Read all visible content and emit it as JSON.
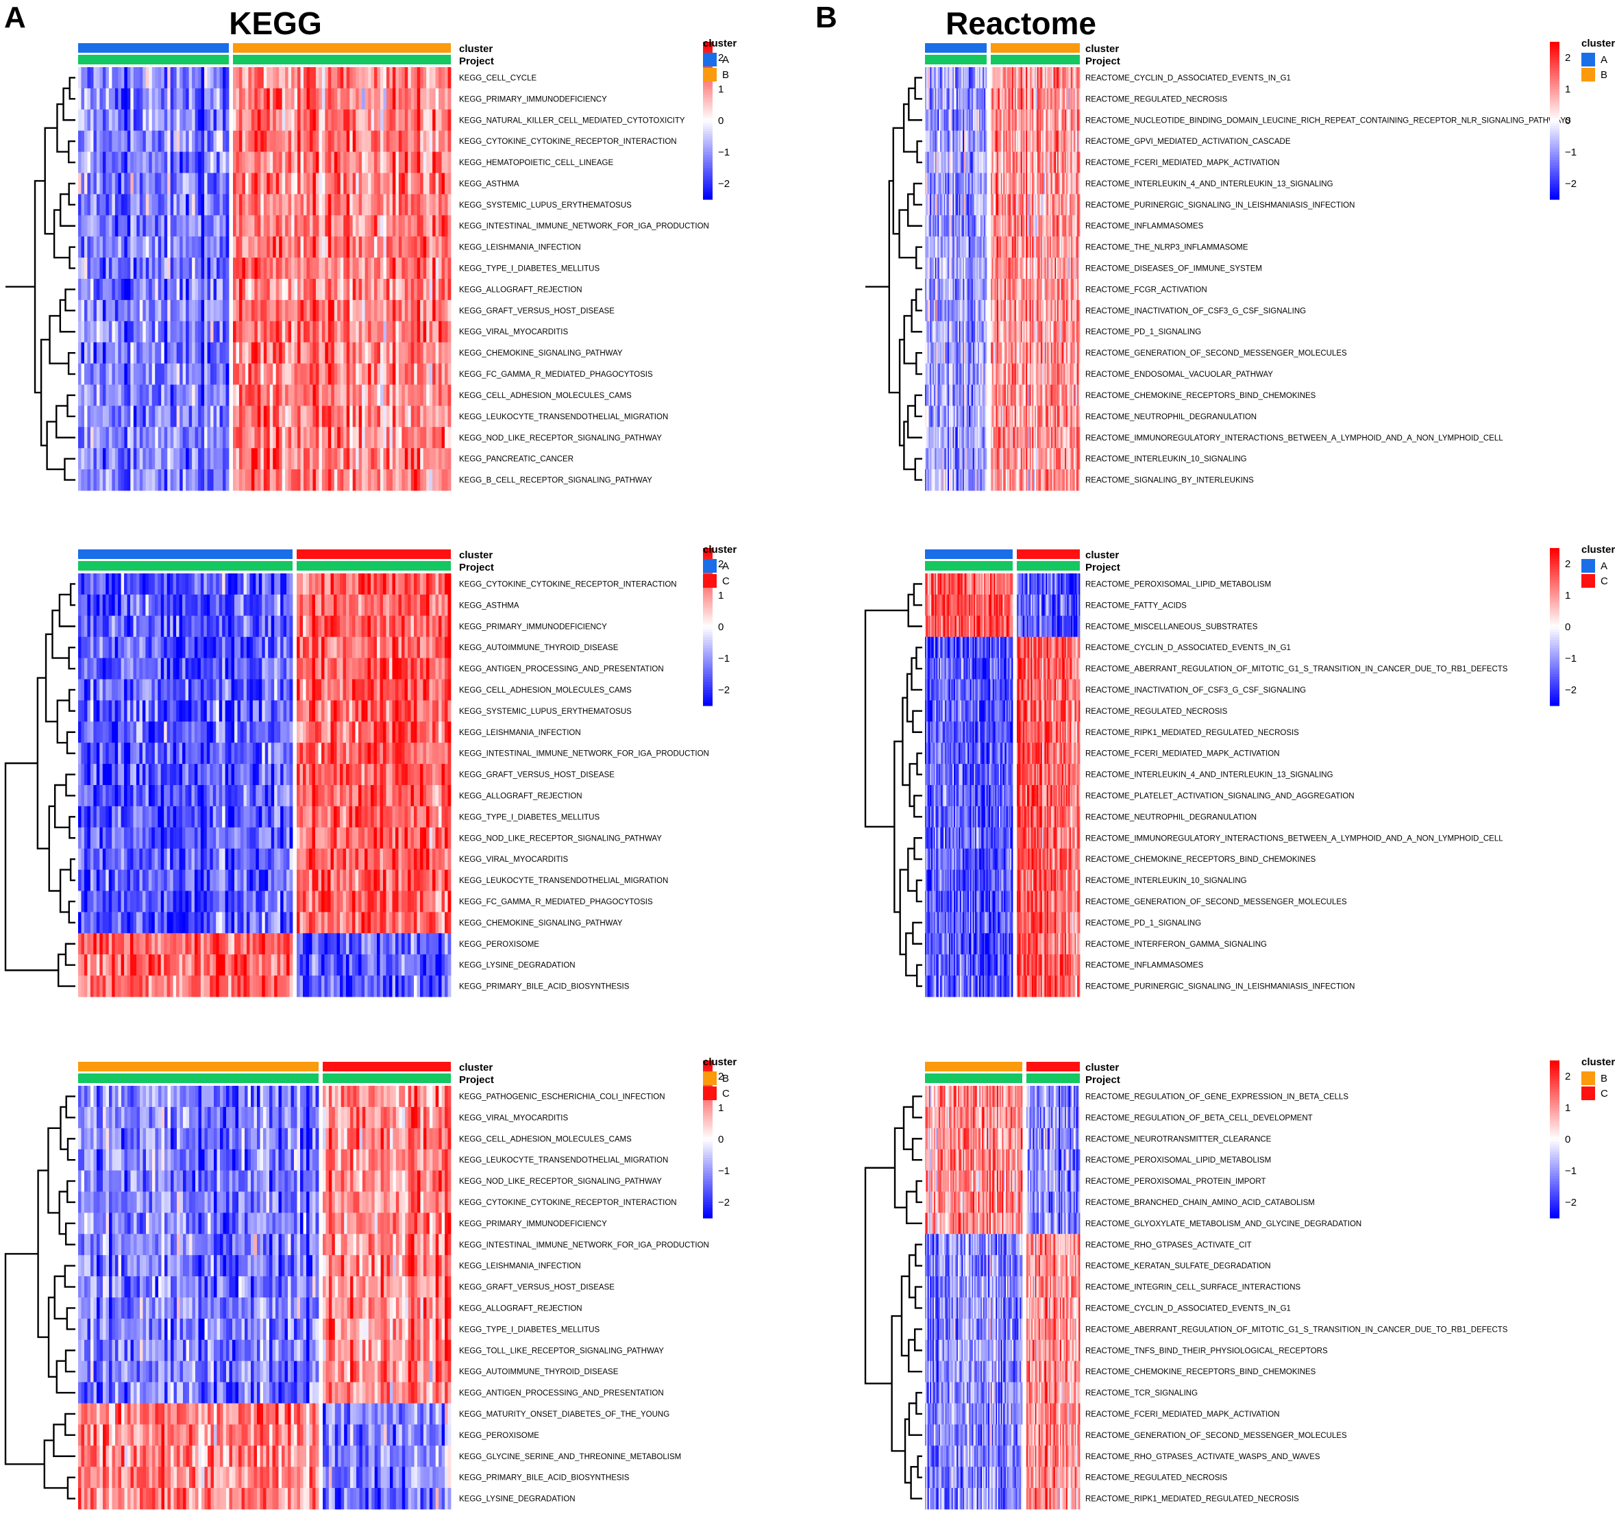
{
  "figure": {
    "panel_letters": [
      "A",
      "B"
    ],
    "column_titles": [
      "KEGG",
      "Reactome"
    ]
  },
  "colors": {
    "cluster_A": "#1a6ee8",
    "cluster_B": "#fb9a0c",
    "cluster_C": "#ff1111",
    "project": "#14c760",
    "scale_low": "#0000ff",
    "scale_mid": "#ffffff",
    "scale_high": "#ff0000"
  },
  "chart_data": [
    {
      "type": "heatmap",
      "panel": "A",
      "comparison": [
        "A",
        "B"
      ],
      "group_split": 0.41,
      "ylabels": [
        "KEGG_CELL_CYCLE",
        "KEGG_PRIMARY_IMMUNODEFICIENCY",
        "KEGG_NATURAL_KILLER_CELL_MEDIATED_CYTOTOXICITY",
        "KEGG_CYTOKINE_CYTOKINE_RECEPTOR_INTERACTION",
        "KEGG_HEMATOPOIETIC_CELL_LINEAGE",
        "KEGG_ASTHMA",
        "KEGG_SYSTEMIC_LUPUS_ERYTHEMATOSUS",
        "KEGG_INTESTINAL_IMMUNE_NETWORK_FOR_IGA_PRODUCTION",
        "KEGG_LEISHMANIA_INFECTION",
        "KEGG_TYPE_I_DIABETES_MELLITUS",
        "KEGG_ALLOGRAFT_REJECTION",
        "KEGG_GRAFT_VERSUS_HOST_DISEASE",
        "KEGG_VIRAL_MYOCARDITIS",
        "KEGG_CHEMOKINE_SIGNALING_PATHWAY",
        "KEGG_FC_GAMMA_R_MEDIATED_PHAGOCYTOSIS",
        "KEGG_CELL_ADHESION_MOLECULES_CAMS",
        "KEGG_LEUKOCYTE_TRANSENDOTHELIAL_MIGRATION",
        "KEGG_NOD_LIKE_RECEPTOR_SIGNALING_PATHWAY",
        "KEGG_PANCREATIC_CANCER",
        "KEGG_B_CELL_RECEPTOR_SIGNALING_PATHWAY"
      ],
      "row_pattern": [
        -1,
        -1,
        -1,
        -1,
        -1,
        -1,
        -1,
        -1,
        -1,
        -1,
        -1,
        -1,
        -1,
        -1,
        -1,
        -1,
        -1,
        -1,
        -1,
        -1
      ],
      "intensity": 0.55,
      "annotation_labels": [
        "cluster",
        "Project"
      ],
      "legend_title": "cluster",
      "legend_entries": [
        "A",
        "B"
      ],
      "colorbar_ticks": [
        "2",
        "1",
        "0",
        "−1",
        "−2"
      ],
      "colorbar_range": [
        -2.5,
        2.5
      ]
    },
    {
      "type": "heatmap",
      "panel": "B",
      "comparison": [
        "A",
        "B"
      ],
      "group_split": 0.41,
      "ylabels": [
        "REACTOME_CYCLIN_D_ASSOCIATED_EVENTS_IN_G1",
        "REACTOME_REGULATED_NECROSIS",
        "REACTOME_NUCLEOTIDE_BINDING_DOMAIN_LEUCINE_RICH_REPEAT_CONTAINING_RECEPTOR_NLR_SIGNALING_PATHWAYS",
        "REACTOME_GPVI_MEDIATED_ACTIVATION_CASCADE",
        "REACTOME_FCERI_MEDIATED_MAPK_ACTIVATION",
        "REACTOME_INTERLEUKIN_4_AND_INTERLEUKIN_13_SIGNALING",
        "REACTOME_PURINERGIC_SIGNALING_IN_LEISHMANIASIS_INFECTION",
        "REACTOME_INFLAMMASOMES",
        "REACTOME_THE_NLRP3_INFLAMMASOME",
        "REACTOME_DISEASES_OF_IMMUNE_SYSTEM",
        "REACTOME_FCGR_ACTIVATION",
        "REACTOME_INACTIVATION_OF_CSF3_G_CSF_SIGNALING",
        "REACTOME_PD_1_SIGNALING",
        "REACTOME_GENERATION_OF_SECOND_MESSENGER_MOLECULES",
        "REACTOME_ENDOSOMAL_VACUOLAR_PATHWAY",
        "REACTOME_CHEMOKINE_RECEPTORS_BIND_CHEMOKINES",
        "REACTOME_NEUTROPHIL_DEGRANULATION",
        "REACTOME_IMMUNOREGULATORY_INTERACTIONS_BETWEEN_A_LYMPHOID_AND_A_NON_LYMPHOID_CELL",
        "REACTOME_INTERLEUKIN_10_SIGNALING",
        "REACTOME_SIGNALING_BY_INTERLEUKINS"
      ],
      "row_pattern": [
        -1,
        -1,
        -1,
        -1,
        -1,
        -1,
        -1,
        -1,
        -1,
        -1,
        -1,
        -1,
        -1,
        -1,
        -1,
        -1,
        -1,
        -1,
        -1,
        -1
      ],
      "intensity": 0.45,
      "annotation_labels": [
        "cluster",
        "Project"
      ],
      "legend_title": "cluster",
      "legend_entries": [
        "A",
        "B"
      ],
      "colorbar_ticks": [
        "2",
        "1",
        "0",
        "−1",
        "−2"
      ],
      "colorbar_range": [
        -2.5,
        2.5
      ]
    },
    {
      "type": "heatmap",
      "panel": "A",
      "comparison": [
        "A",
        "C"
      ],
      "group_split": 0.58,
      "ylabels": [
        "KEGG_CYTOKINE_CYTOKINE_RECEPTOR_INTERACTION",
        "KEGG_ASTHMA",
        "KEGG_PRIMARY_IMMUNODEFICIENCY",
        "KEGG_AUTOIMMUNE_THYROID_DISEASE",
        "KEGG_ANTIGEN_PROCESSING_AND_PRESENTATION",
        "KEGG_CELL_ADHESION_MOLECULES_CAMS",
        "KEGG_SYSTEMIC_LUPUS_ERYTHEMATOSUS",
        "KEGG_LEISHMANIA_INFECTION",
        "KEGG_INTESTINAL_IMMUNE_NETWORK_FOR_IGA_PRODUCTION",
        "KEGG_GRAFT_VERSUS_HOST_DISEASE",
        "KEGG_ALLOGRAFT_REJECTION",
        "KEGG_TYPE_I_DIABETES_MELLITUS",
        "KEGG_NOD_LIKE_RECEPTOR_SIGNALING_PATHWAY",
        "KEGG_VIRAL_MYOCARDITIS",
        "KEGG_LEUKOCYTE_TRANSENDOTHELIAL_MIGRATION",
        "KEGG_FC_GAMMA_R_MEDIATED_PHAGOCYTOSIS",
        "KEGG_CHEMOKINE_SIGNALING_PATHWAY",
        "KEGG_PEROXISOME",
        "KEGG_LYSINE_DEGRADATION",
        "KEGG_PRIMARY_BILE_ACID_BIOSYNTHESIS"
      ],
      "row_pattern": [
        -1,
        -1,
        -1,
        -1,
        -1,
        -1,
        -1,
        -1,
        -1,
        -1,
        -1,
        -1,
        -1,
        -1,
        -1,
        -1,
        -1,
        1,
        1,
        1
      ],
      "intensity": 0.72,
      "annotation_labels": [
        "cluster",
        "Project"
      ],
      "legend_title": "cluster",
      "legend_entries": [
        "A",
        "C"
      ],
      "colorbar_ticks": [
        "2",
        "1",
        "0",
        "−1",
        "−2"
      ],
      "colorbar_range": [
        -2.5,
        2.5
      ]
    },
    {
      "type": "heatmap",
      "panel": "B",
      "comparison": [
        "A",
        "C"
      ],
      "group_split": 0.58,
      "ylabels": [
        "REACTOME_PEROXISOMAL_LIPID_METABOLISM",
        "REACTOME_FATTY_ACIDS",
        "REACTOME_MISCELLANEOUS_SUBSTRATES",
        "REACTOME_CYCLIN_D_ASSOCIATED_EVENTS_IN_G1",
        "REACTOME_ABERRANT_REGULATION_OF_MITOTIC_G1_S_TRANSITION_IN_CANCER_DUE_TO_RB1_DEFECTS",
        "REACTOME_INACTIVATION_OF_CSF3_G_CSF_SIGNALING",
        "REACTOME_REGULATED_NECROSIS",
        "REACTOME_RIPK1_MEDIATED_REGULATED_NECROSIS",
        "REACTOME_FCERI_MEDIATED_MAPK_ACTIVATION",
        "REACTOME_INTERLEUKIN_4_AND_INTERLEUKIN_13_SIGNALING",
        "REACTOME_PLATELET_ACTIVATION_SIGNALING_AND_AGGREGATION",
        "REACTOME_NEUTROPHIL_DEGRANULATION",
        "REACTOME_IMMUNOREGULATORY_INTERACTIONS_BETWEEN_A_LYMPHOID_AND_A_NON_LYMPHOID_CELL",
        "REACTOME_CHEMOKINE_RECEPTORS_BIND_CHEMOKINES",
        "REACTOME_INTERLEUKIN_10_SIGNALING",
        "REACTOME_GENERATION_OF_SECOND_MESSENGER_MOLECULES",
        "REACTOME_PD_1_SIGNALING",
        "REACTOME_INTERFERON_GAMMA_SIGNALING",
        "REACTOME_INFLAMMASOMES",
        "REACTOME_PURINERGIC_SIGNALING_IN_LEISHMANIASIS_INFECTION"
      ],
      "row_pattern": [
        1,
        1,
        1,
        -1,
        -1,
        -1,
        -1,
        -1,
        -1,
        -1,
        -1,
        -1,
        -1,
        -1,
        -1,
        -1,
        -1,
        -1,
        -1,
        -1
      ],
      "intensity": 0.75,
      "annotation_labels": [
        "cluster",
        "Project"
      ],
      "legend_title": "cluster",
      "legend_entries": [
        "A",
        "C"
      ],
      "colorbar_ticks": [
        "2",
        "1",
        "0",
        "−1",
        "−2"
      ],
      "colorbar_range": [
        -2.5,
        2.5
      ]
    },
    {
      "type": "heatmap",
      "panel": "A",
      "comparison": [
        "B",
        "C"
      ],
      "group_split": 0.65,
      "ylabels": [
        "KEGG_PATHOGENIC_ESCHERICHIA_COLI_INFECTION",
        "KEGG_VIRAL_MYOCARDITIS",
        "KEGG_CELL_ADHESION_MOLECULES_CAMS",
        "KEGG_LEUKOCYTE_TRANSENDOTHELIAL_MIGRATION",
        "KEGG_NOD_LIKE_RECEPTOR_SIGNALING_PATHWAY",
        "KEGG_CYTOKINE_CYTOKINE_RECEPTOR_INTERACTION",
        "KEGG_PRIMARY_IMMUNODEFICIENCY",
        "KEGG_INTESTINAL_IMMUNE_NETWORK_FOR_IGA_PRODUCTION",
        "KEGG_LEISHMANIA_INFECTION",
        "KEGG_GRAFT_VERSUS_HOST_DISEASE",
        "KEGG_ALLOGRAFT_REJECTION",
        "KEGG_TYPE_I_DIABETES_MELLITUS",
        "KEGG_TOLL_LIKE_RECEPTOR_SIGNALING_PATHWAY",
        "KEGG_AUTOIMMUNE_THYROID_DISEASE",
        "KEGG_ANTIGEN_PROCESSING_AND_PRESENTATION",
        "KEGG_MATURITY_ONSET_DIABETES_OF_THE_YOUNG",
        "KEGG_PEROXISOME",
        "KEGG_GLYCINE_SERINE_AND_THREONINE_METABOLISM",
        "KEGG_PRIMARY_BILE_ACID_BIOSYNTHESIS",
        "KEGG_LYSINE_DEGRADATION"
      ],
      "row_pattern": [
        -1,
        -1,
        -1,
        -1,
        -1,
        -1,
        -1,
        -1,
        -1,
        -1,
        -1,
        -1,
        -1,
        -1,
        -1,
        1,
        1,
        1,
        1,
        1
      ],
      "intensity": 0.55,
      "annotation_labels": [
        "cluster",
        "Project"
      ],
      "legend_title": "cluster",
      "legend_entries": [
        "B",
        "C"
      ],
      "colorbar_ticks": [
        "2",
        "1",
        "0",
        "−1",
        "−2"
      ],
      "colorbar_range": [
        -2.5,
        2.5
      ]
    },
    {
      "type": "heatmap",
      "panel": "B",
      "comparison": [
        "B",
        "C"
      ],
      "group_split": 0.64,
      "ylabels": [
        "REACTOME_REGULATION_OF_GENE_EXPRESSION_IN_BETA_CELLS",
        "REACTOME_REGULATION_OF_BETA_CELL_DEVELOPMENT",
        "REACTOME_NEUROTRANSMITTER_CLEARANCE",
        "REACTOME_PEROXISOMAL_LIPID_METABOLISM",
        "REACTOME_PEROXISOMAL_PROTEIN_IMPORT",
        "REACTOME_BRANCHED_CHAIN_AMINO_ACID_CATABOLISM",
        "REACTOME_GLYOXYLATE_METABOLISM_AND_GLYCINE_DEGRADATION",
        "REACTOME_RHO_GTPASES_ACTIVATE_CIT",
        "REACTOME_KERATAN_SULFATE_DEGRADATION",
        "REACTOME_INTEGRIN_CELL_SURFACE_INTERACTIONS",
        "REACTOME_CYCLIN_D_ASSOCIATED_EVENTS_IN_G1",
        "REACTOME_ABERRANT_REGULATION_OF_MITOTIC_G1_S_TRANSITION_IN_CANCER_DUE_TO_RB1_DEFECTS",
        "REACTOME_TNFS_BIND_THEIR_PHYSIOLOGICAL_RECEPTORS",
        "REACTOME_CHEMOKINE_RECEPTORS_BIND_CHEMOKINES",
        "REACTOME_TCR_SIGNALING",
        "REACTOME_FCERI_MEDIATED_MAPK_ACTIVATION",
        "REACTOME_GENERATION_OF_SECOND_MESSENGER_MOLECULES",
        "REACTOME_RHO_GTPASES_ACTIVATE_WASPS_AND_WAVES",
        "REACTOME_REGULATED_NECROSIS",
        "REACTOME_RIPK1_MEDIATED_REGULATED_NECROSIS"
      ],
      "row_pattern": [
        1,
        1,
        1,
        1,
        1,
        1,
        1,
        -1,
        -1,
        -1,
        -1,
        -1,
        -1,
        -1,
        -1,
        -1,
        -1,
        -1,
        -1,
        -1
      ],
      "intensity": 0.5,
      "annotation_labels": [
        "cluster",
        "Project"
      ],
      "legend_title": "cluster",
      "legend_entries": [
        "B",
        "C"
      ],
      "colorbar_ticks": [
        "2",
        "1",
        "0",
        "−1",
        "−2"
      ],
      "colorbar_range": [
        -2.5,
        2.5
      ]
    }
  ]
}
